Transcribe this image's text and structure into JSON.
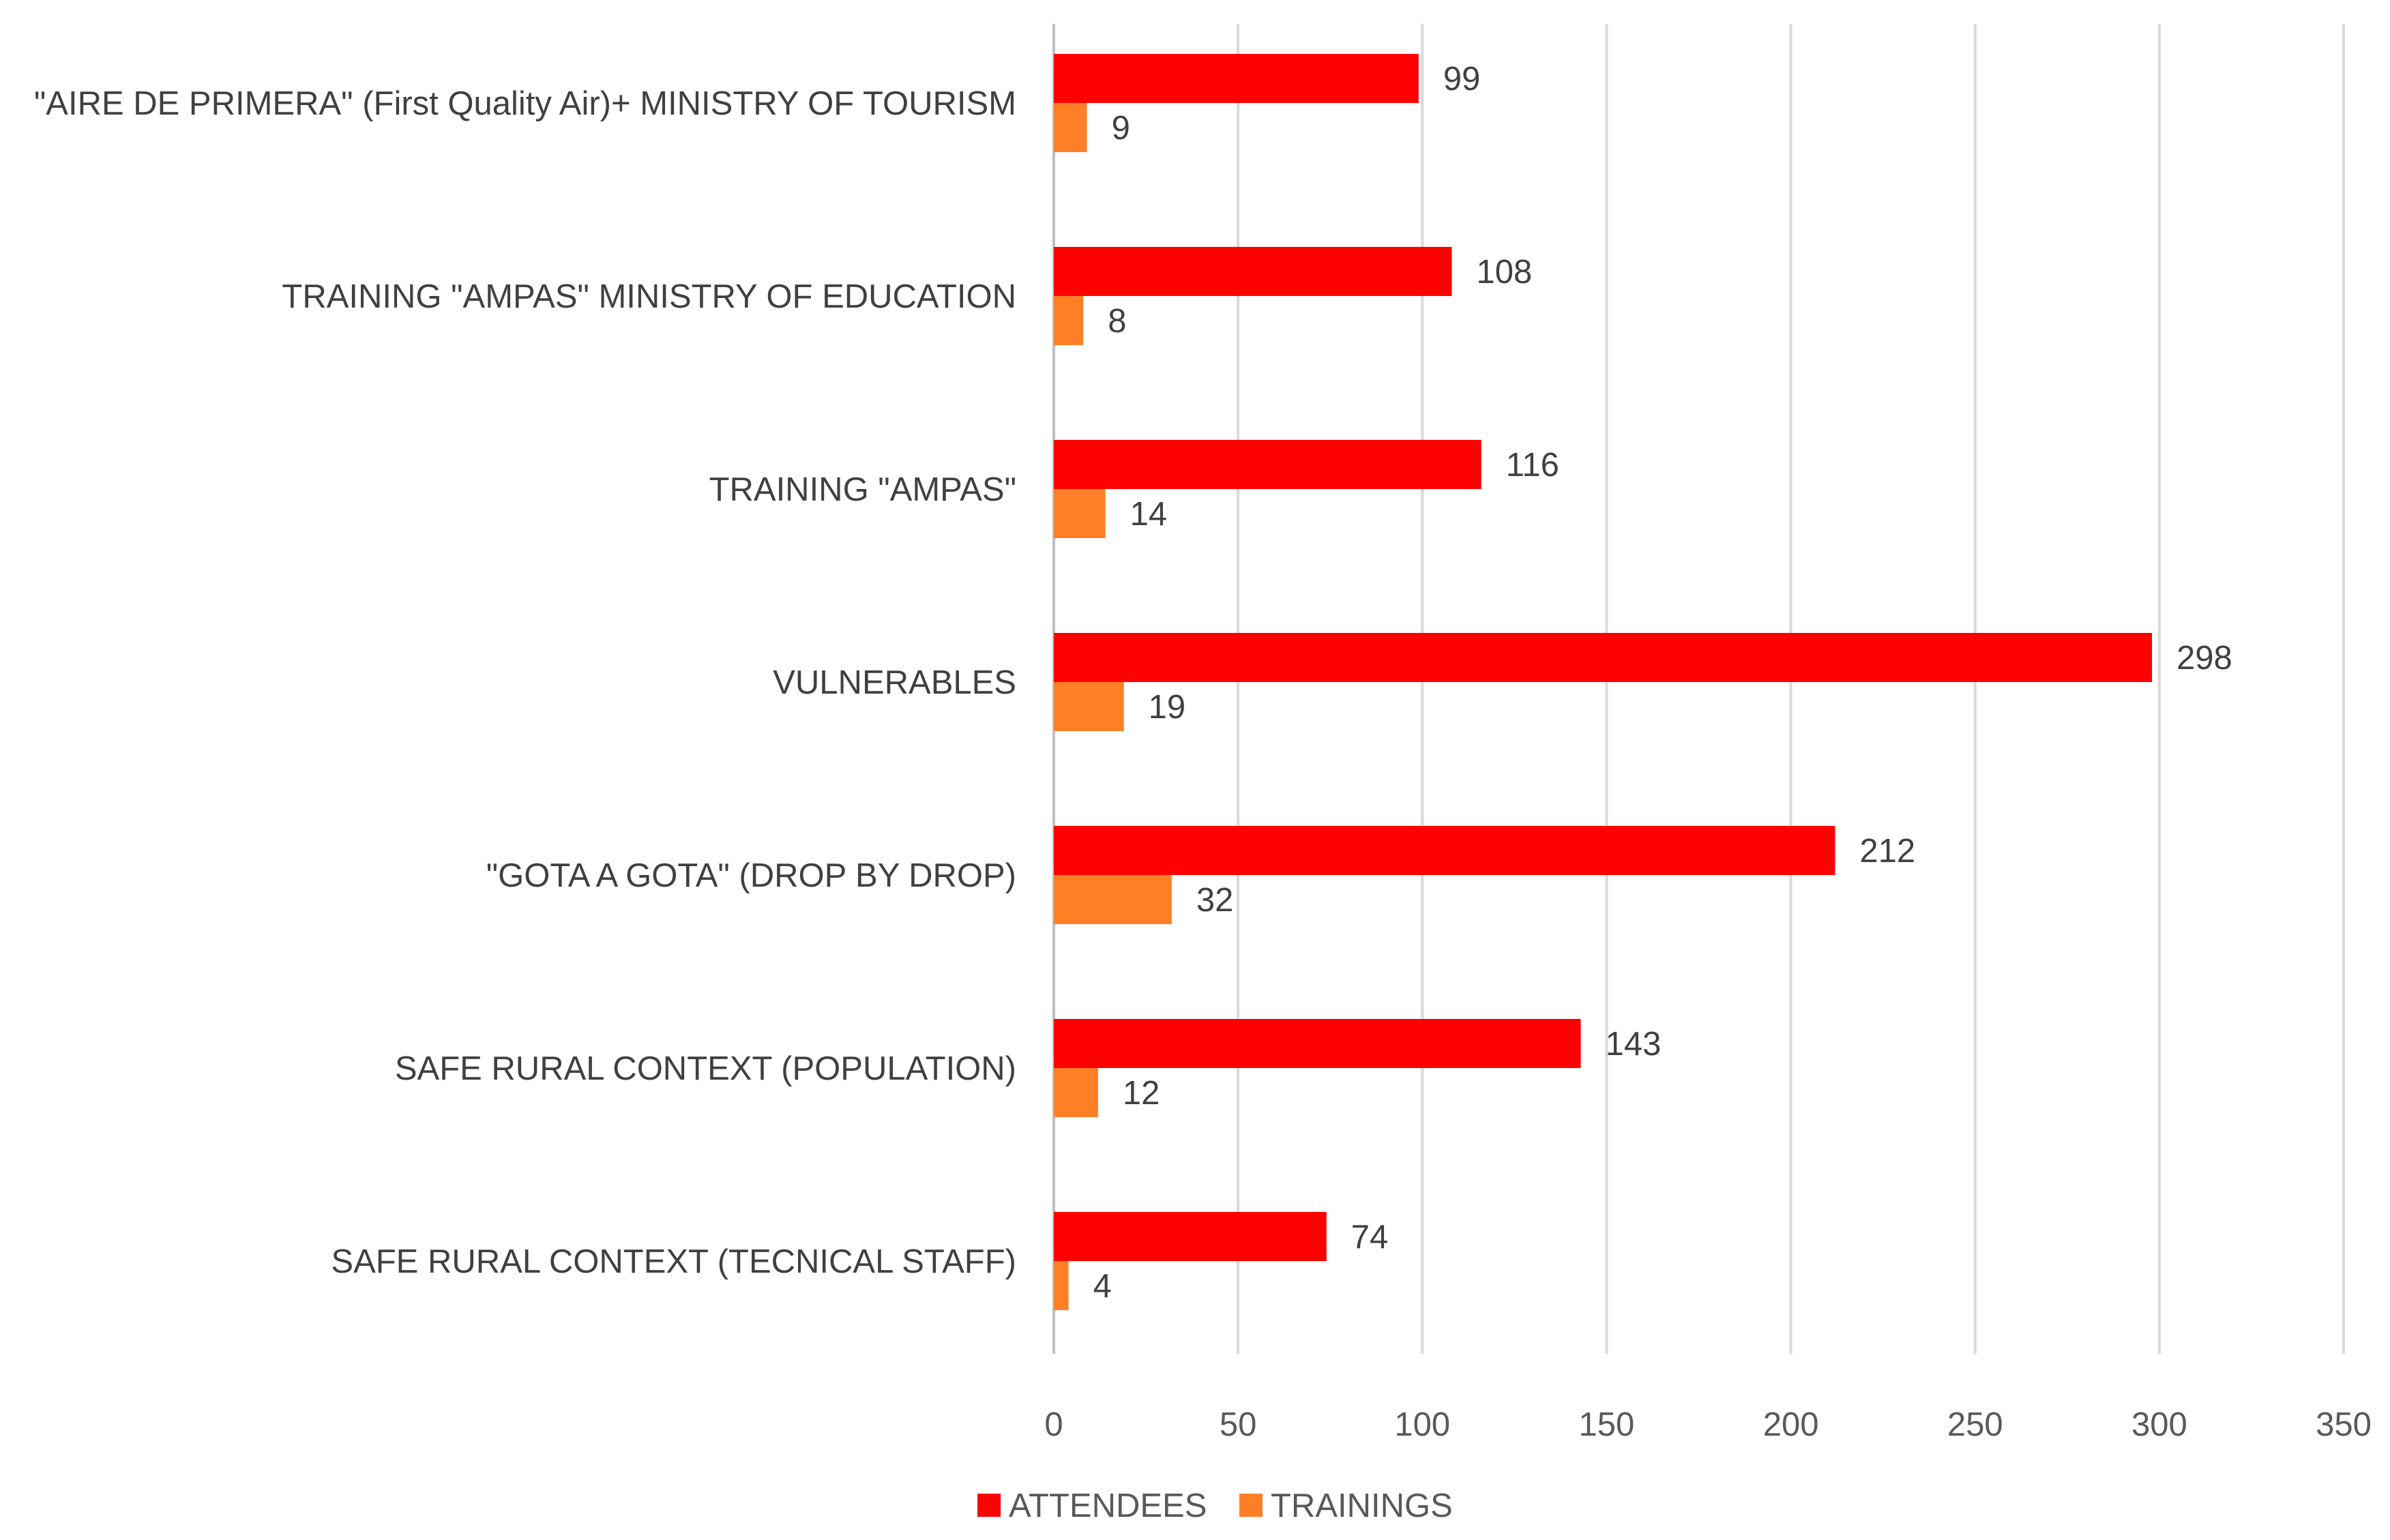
{
  "chart_data": {
    "type": "bar",
    "orientation": "horizontal",
    "title": "",
    "xlabel": "",
    "ylabel": "",
    "categories": [
      "\"AIRE DE PRIMERA\" (First Quality Air)+ MINISTRY OF TOURISM",
      "TRAINING \"AMPAS\" MINISTRY OF EDUCATION",
      "TRAINING \"AMPAS\"",
      "VULNERABLES",
      "\"GOTA A GOTA\" (DROP BY DROP)",
      "SAFE RURAL CONTEXT (POPULATION)",
      "SAFE RURAL CONTEXT (TECNICAL STAFF)"
    ],
    "series": [
      {
        "name": "ATTENDEES",
        "color": "#ff0000",
        "values": [
          99,
          108,
          116,
          298,
          212,
          143,
          74
        ]
      },
      {
        "name": "TRAININGS",
        "color": "#ff7f27",
        "values": [
          9,
          8,
          14,
          19,
          32,
          12,
          4
        ]
      }
    ],
    "xlim": [
      0,
      350
    ],
    "xticks": [
      0,
      50,
      100,
      150,
      200,
      250,
      300,
      350
    ],
    "grid": true,
    "legend_position": "bottom-center",
    "data_labels": true
  }
}
